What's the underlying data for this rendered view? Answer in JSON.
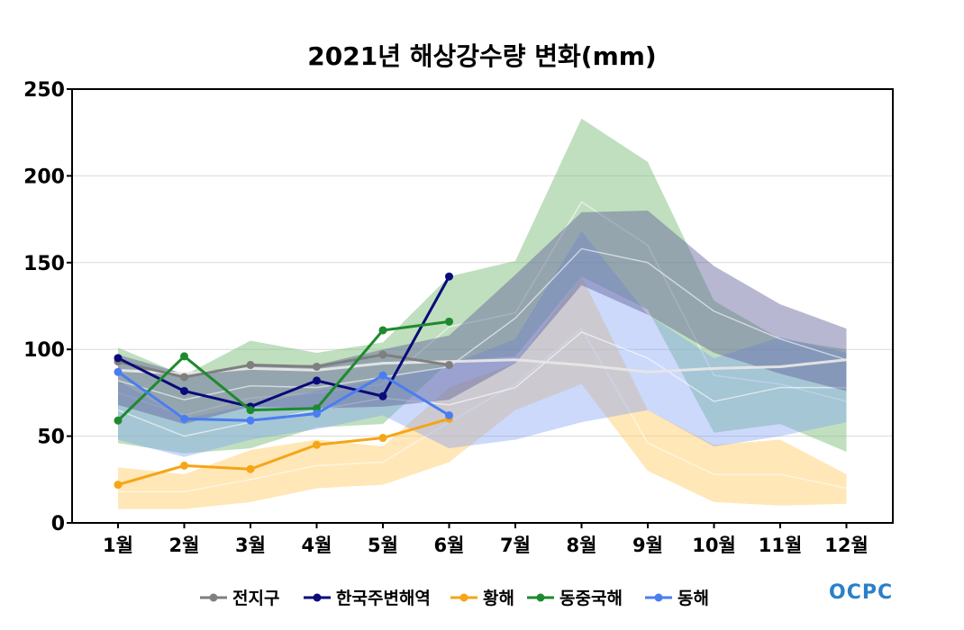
{
  "chart_data": {
    "type": "line",
    "title": "2021년 해상강수량 변화(mm)",
    "xlabel": "",
    "ylabel": "",
    "categories": [
      "1월",
      "2월",
      "3월",
      "4월",
      "5월",
      "6월",
      "7월",
      "8월",
      "9월",
      "10월",
      "11월",
      "12월"
    ],
    "ylim": [
      0,
      250
    ],
    "yticks": [
      0,
      50,
      100,
      150,
      200,
      250
    ],
    "grid": true,
    "legend_position": "bottom",
    "series": [
      {
        "name": "전지구",
        "color": "#7f7f7f",
        "values": [
          93,
          84,
          91,
          90,
          97,
          91,
          null,
          null,
          null,
          null,
          null,
          null
        ]
      },
      {
        "name": "한국주변해역",
        "color": "#0a0a7a",
        "values": [
          95,
          76,
          67,
          82,
          73,
          142,
          null,
          null,
          null,
          null,
          null,
          null
        ]
      },
      {
        "name": "황해",
        "color": "#f5a516",
        "values": [
          22,
          33,
          31,
          45,
          49,
          60,
          null,
          null,
          null,
          null,
          null,
          null
        ]
      },
      {
        "name": "동중국해",
        "color": "#1e8a2e",
        "values": [
          59,
          96,
          65,
          66,
          111,
          116,
          null,
          null,
          null,
          null,
          null,
          null
        ]
      },
      {
        "name": "동해",
        "color": "#4a7df2",
        "values": [
          87,
          60,
          59,
          63,
          85,
          62,
          null,
          null,
          null,
          null,
          null,
          null
        ]
      }
    ],
    "climatology_bands": [
      {
        "region": "황해",
        "color": "#ffcf70",
        "opacity": 0.5,
        "upper": [
          32,
          28,
          42,
          48,
          44,
          78,
          92,
          142,
          65,
          45,
          48,
          28
        ],
        "lower": [
          8,
          8,
          12,
          20,
          22,
          35,
          65,
          80,
          30,
          12,
          10,
          11
        ],
        "mean": [
          18,
          18,
          25,
          33,
          35,
          58,
          80,
          112,
          46,
          28,
          28,
          20
        ]
      },
      {
        "region": "동중국해",
        "color": "#7fbf7f",
        "opacity": 0.5,
        "upper": [
          101,
          85,
          105,
          98,
          104,
          142,
          151,
          233,
          208,
          128,
          106,
          100
        ],
        "lower": [
          46,
          40,
          43,
          55,
          57,
          93,
          96,
          142,
          123,
          52,
          57,
          41
        ],
        "mean": [
          75,
          62,
          72,
          75,
          80,
          113,
          121,
          185,
          160,
          85,
          80,
          70
        ]
      },
      {
        "region": "동해",
        "color": "#7f9ff5",
        "opacity": 0.4,
        "upper": [
          82,
          60,
          68,
          76,
          83,
          91,
          106,
          168,
          120,
          95,
          107,
          98
        ],
        "lower": [
          48,
          38,
          48,
          54,
          62,
          43,
          48,
          58,
          65,
          44,
          50,
          58
        ],
        "mean": [
          65,
          50,
          58,
          65,
          72,
          68,
          78,
          110,
          95,
          70,
          78,
          78
        ]
      },
      {
        "region": "한국주변해역",
        "color": "#606098",
        "opacity": 0.45,
        "upper": [
          97,
          86,
          91,
          91,
          100,
          108,
          143,
          179,
          180,
          148,
          126,
          112
        ],
        "lower": [
          68,
          57,
          67,
          66,
          67,
          71,
          92,
          137,
          120,
          98,
          86,
          76
        ],
        "mean": [
          82,
          71,
          79,
          78,
          84,
          90,
          118,
          158,
          150,
          122,
          106,
          94
        ]
      },
      {
        "region": "전지구",
        "color": "#dddddd",
        "opacity": 0.9,
        "mean": [
          88,
          86,
          89,
          88,
          92,
          93,
          94,
          91,
          87,
          89,
          90,
          94
        ]
      }
    ]
  },
  "logo": {
    "text": "OCPC"
  }
}
